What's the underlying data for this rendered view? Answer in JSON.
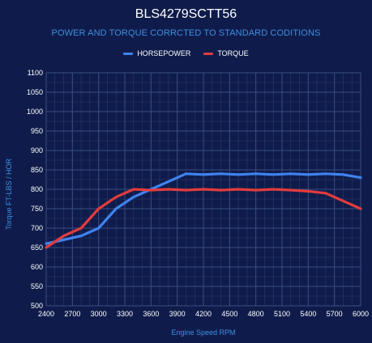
{
  "chart_data": {
    "type": "line",
    "title": "BLS4279SCTT56",
    "subtitle": "POWER AND TORQUE CORRCTED TO STANDARD CODITIONS",
    "xlabel": "Engine Speed RPM",
    "ylabel": "Torque FT-LBS / HOR",
    "x": [
      2400,
      2600,
      2800,
      3000,
      3200,
      3400,
      3600,
      3800,
      4000,
      4200,
      4400,
      4600,
      4800,
      5000,
      5200,
      5400,
      5600,
      5800,
      6000
    ],
    "xticks": [
      "2400",
      "2700",
      "3000",
      "3300",
      "3600",
      "3900",
      "4200",
      "4500",
      "4800",
      "5100",
      "5400",
      "5700",
      "6000"
    ],
    "yticks": [
      "500",
      "550",
      "600",
      "650",
      "700",
      "750",
      "800",
      "850",
      "900",
      "950",
      "1000",
      "1050",
      "1100"
    ],
    "xlim": [
      2400,
      6000
    ],
    "ylim": [
      500,
      1100
    ],
    "grid": true,
    "legend_position": "top-center",
    "series": [
      {
        "name": "HORSEPOWER",
        "color": "#3f83f0",
        "values": [
          660,
          670,
          680,
          700,
          750,
          780,
          800,
          820,
          840,
          838,
          840,
          838,
          840,
          838,
          840,
          838,
          840,
          838,
          830
        ]
      },
      {
        "name": "TORQUE",
        "color": "#e23c3c",
        "values": [
          650,
          680,
          700,
          750,
          780,
          800,
          798,
          800,
          798,
          800,
          798,
          800,
          798,
          800,
          798,
          795,
          790,
          770,
          750
        ]
      }
    ]
  }
}
